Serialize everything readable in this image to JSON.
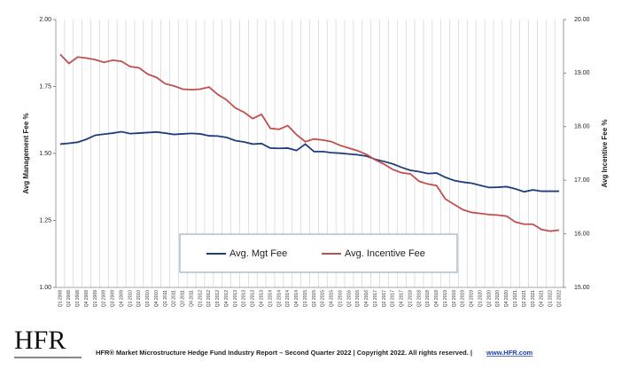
{
  "chart_data": {
    "type": "line",
    "categories": [
      "Q1 2008",
      "Q2 2008",
      "Q3 2008",
      "Q4 2008",
      "Q1 2009",
      "Q2 2009",
      "Q3 2009",
      "Q4 2009",
      "Q1 2010",
      "Q2 2010",
      "Q3 2010",
      "Q4 2010",
      "Q1 2011",
      "Q2 2011",
      "Q3 2011",
      "Q4 2011",
      "Q1 2012",
      "Q2 2012",
      "Q3 2012",
      "Q4 2012",
      "Q1 2013",
      "Q2 2013",
      "Q3 2013",
      "Q4 2013",
      "Q1 2014",
      "Q2 2014",
      "Q3 2014",
      "Q4 2014",
      "Q1 2015",
      "Q2 2015",
      "Q3 2015",
      "Q4 2015",
      "Q1 2016",
      "Q2 2016",
      "Q3 2016",
      "Q4 2016",
      "Q1 2017",
      "Q2 2017",
      "Q3 2017",
      "Q4 2017",
      "Q1 2018",
      "Q2 2018",
      "Q3 2018",
      "Q4 2018",
      "Q1 2019",
      "Q2 2019",
      "Q3 2019",
      "Q4 2019",
      "Q1 2020",
      "Q2 2020",
      "Q3 2020",
      "Q4 2020",
      "Q1 2021",
      "Q2 2021",
      "Q3 2021",
      "Q4 2021",
      "Q1 2022",
      "Q2 2022"
    ],
    "series": [
      {
        "name": "Avg. Mgt Fee",
        "color": "#1f3f7a",
        "axis": "y",
        "values": [
          1.535,
          1.538,
          1.542,
          1.553,
          1.568,
          1.572,
          1.576,
          1.581,
          1.574,
          1.576,
          1.578,
          1.58,
          1.576,
          1.571,
          1.573,
          1.575,
          1.573,
          1.566,
          1.565,
          1.56,
          1.548,
          1.543,
          1.535,
          1.537,
          1.52,
          1.519,
          1.52,
          1.511,
          1.535,
          1.507,
          1.507,
          1.503,
          1.501,
          1.498,
          1.495,
          1.49,
          1.478,
          1.47,
          1.461,
          1.448,
          1.437,
          1.432,
          1.425,
          1.427,
          1.411,
          1.399,
          1.393,
          1.389,
          1.381,
          1.373,
          1.374,
          1.376,
          1.368,
          1.357,
          1.364,
          1.359,
          1.359,
          1.359
        ]
      },
      {
        "name": "Avg. Incentive Fee",
        "color": "#c0504d",
        "axis": "y2",
        "values": [
          19.35,
          19.18,
          19.3,
          19.28,
          19.25,
          19.2,
          19.24,
          19.22,
          19.12,
          19.1,
          18.98,
          18.92,
          18.8,
          18.76,
          18.7,
          18.69,
          18.7,
          18.74,
          18.6,
          18.5,
          18.35,
          18.27,
          18.15,
          18.23,
          17.97,
          17.95,
          18.02,
          17.85,
          17.72,
          17.77,
          17.75,
          17.72,
          17.65,
          17.6,
          17.55,
          17.48,
          17.38,
          17.3,
          17.2,
          17.14,
          17.12,
          16.98,
          16.93,
          16.9,
          16.65,
          16.55,
          16.45,
          16.4,
          16.38,
          16.36,
          16.35,
          16.33,
          16.22,
          16.18,
          16.18,
          16.08,
          16.05,
          16.07
        ]
      }
    ],
    "ylabel": "Avg Management Fee %",
    "y2label": "Avg Incentive Fee %",
    "ylim": [
      1,
      2
    ],
    "yticks": [
      {
        "value": 1,
        "label": "1.00"
      },
      {
        "value": 1.25,
        "label": "1.25"
      },
      {
        "value": 1.5,
        "label": "1.50"
      },
      {
        "value": 1.75,
        "label": "1.75"
      },
      {
        "value": 2,
        "label": "2.00"
      }
    ],
    "y2lim": [
      15,
      20
    ],
    "y2ticks": [
      {
        "value": 15,
        "label": "15.00"
      },
      {
        "value": 16,
        "label": "16.00"
      },
      {
        "value": 17,
        "label": "17.00"
      },
      {
        "value": 18,
        "label": "18.00"
      },
      {
        "value": 19,
        "label": "19.00"
      },
      {
        "value": 20,
        "label": "20.00"
      }
    ],
    "grid": "vertical"
  },
  "footer": {
    "logo": "HFR",
    "text": "HFR® Market Microstructure Hedge Fund Industry Report – Second Quarter 2022  |  Copyright 2022. All rights reserved.   |",
    "link": "www.HFR.com"
  }
}
